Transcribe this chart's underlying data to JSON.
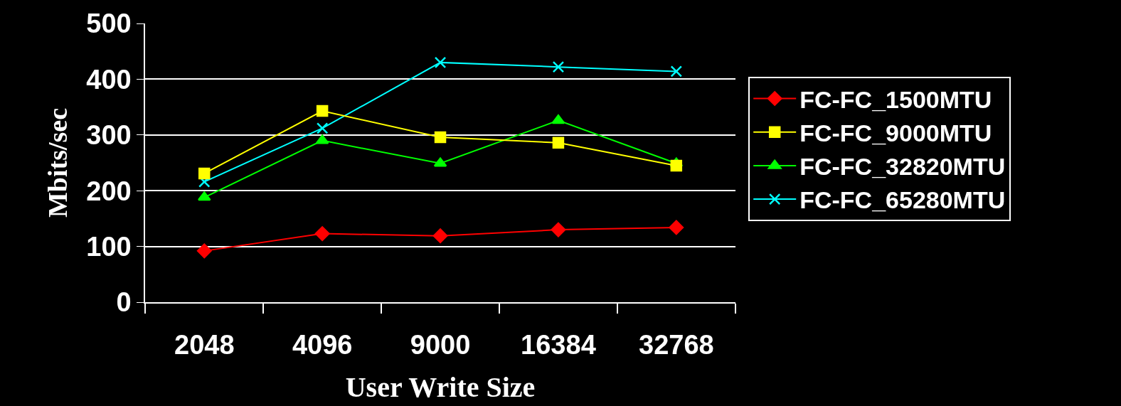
{
  "chart_data": {
    "type": "line",
    "xlabel": "User Write Size",
    "ylabel": "Mbits/sec",
    "categories": [
      "2048",
      "4096",
      "9000",
      "16384",
      "32768"
    ],
    "series": [
      {
        "name": "FC-FC_1500MTU",
        "color": "#ff0000",
        "marker": "diamond",
        "values": [
          92,
          123,
          119,
          130,
          134
        ]
      },
      {
        "name": "FC-FC_9000MTU",
        "color": "#ffff00",
        "marker": "square",
        "values": [
          231,
          343,
          296,
          286,
          245
        ]
      },
      {
        "name": "FC-FC_32820MTU",
        "color": "#00ff00",
        "marker": "triangle",
        "values": [
          188,
          290,
          249,
          326,
          249
        ]
      },
      {
        "name": "FC-FC_65280MTU",
        "color": "#00ffff",
        "marker": "cross",
        "values": [
          216,
          312,
          430,
          422,
          414
        ]
      }
    ],
    "ylim": [
      0,
      500
    ],
    "yticks": [
      0,
      100,
      200,
      300,
      400,
      500
    ],
    "grid": "y",
    "legend": "right"
  }
}
